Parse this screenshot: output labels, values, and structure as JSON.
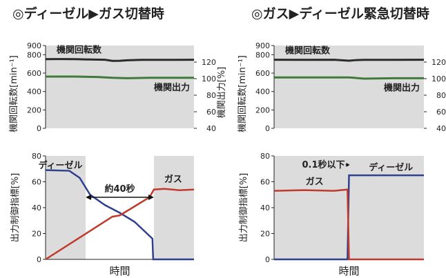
{
  "panels": [
    {
      "heading": "◎ディーゼル▶ガス切替時",
      "chart_data": [
        {
          "type": "line",
          "ylabel_left": "機関回転数[min⁻¹]",
          "ylabel_right": "機関出力[%]",
          "ylim_left": [
            0,
            900
          ],
          "yticks_left": [
            "0",
            "200",
            "400",
            "600",
            "800",
            "900"
          ],
          "ylim_right": [
            40,
            140
          ],
          "yticks_right": [
            "40",
            "60",
            "80",
            "100",
            "120"
          ],
          "grid": false,
          "series": [
            {
              "name": "機関回転数",
              "axis": "left",
              "color": "#2a2a2a",
              "x": [
                0,
                0.1,
                0.2,
                0.3,
                0.4,
                0.45,
                0.5,
                0.55,
                0.65,
                0.8,
                1.0
              ],
              "y": [
                752,
                753,
                752,
                748,
                745,
                733,
                734,
                740,
                744,
                744,
                745
              ]
            },
            {
              "name": "機関出力",
              "axis": "right",
              "color": "#3f7a3a",
              "x": [
                0,
                0.2,
                0.35,
                0.45,
                0.55,
                0.7,
                0.85,
                1.0
              ],
              "y": [
                102.5,
                102.5,
                102,
                101,
                100.5,
                101,
                101,
                101
              ]
            }
          ]
        },
        {
          "type": "line",
          "ylabel": "出力制御指標[%]",
          "xlabel": "時間",
          "ylim": [
            0,
            80
          ],
          "yticks": [
            "0",
            "20",
            "40",
            "60",
            "80"
          ],
          "grid": false,
          "shaded_ranges": [
            [
              0,
              0.27
            ],
            [
              0.73,
              1.0
            ]
          ],
          "annotation": {
            "text": "約40秒",
            "from_x": 0.27,
            "to_x": 0.73,
            "y": 48
          },
          "series": [
            {
              "name": "ディーゼル",
              "color": "#2e3f8f",
              "x": [
                0,
                0.16,
                0.23,
                0.3,
                0.4,
                0.5,
                0.6,
                0.72,
                0.725,
                1.0
              ],
              "y": [
                69,
                68.5,
                63,
                50,
                42,
                36,
                29,
                16,
                0,
                0
              ]
            },
            {
              "name": "ガス",
              "color": "#c0392b",
              "x": [
                0,
                0.45,
                0.5,
                0.6,
                0.7,
                0.73,
                0.8,
                0.9,
                1.0
              ],
              "y": [
                0,
                33,
                34,
                41,
                48,
                54,
                54.5,
                53.5,
                54
              ]
            }
          ]
        }
      ]
    },
    {
      "heading": "◎ガス▶ディーゼル緊急切替時",
      "chart_data": [
        {
          "type": "line",
          "ylabel_left": "機関回転数[min⁻¹]",
          "ylabel_right": "機関出力[%]",
          "ylim_left": [
            0,
            900
          ],
          "yticks_left": [
            "0",
            "200",
            "400",
            "600",
            "800",
            "900"
          ],
          "ylim_right": [
            40,
            140
          ],
          "yticks_right": [
            "40",
            "60",
            "80",
            "100",
            "120"
          ],
          "grid": false,
          "series": [
            {
              "name": "機関回転数",
              "axis": "left",
              "color": "#2a2a2a",
              "x": [
                0,
                0.2,
                0.4,
                0.5,
                0.55,
                0.6,
                0.8,
                1.0
              ],
              "y": [
                745,
                744,
                745,
                735,
                742,
                744,
                744,
                745
              ]
            },
            {
              "name": "機関出力",
              "axis": "right",
              "color": "#3f7a3a",
              "x": [
                0,
                0.3,
                0.5,
                0.6,
                0.8,
                1.0
              ],
              "y": [
                101.5,
                101.5,
                101.5,
                100,
                100.5,
                100.5
              ]
            }
          ]
        },
        {
          "type": "line",
          "ylabel": "出力制御指標[%]",
          "xlabel": "時間",
          "ylim": [
            0,
            80
          ],
          "yticks": [
            "0",
            "20",
            "40",
            "60",
            "80"
          ],
          "grid": false,
          "shaded_ranges": [
            [
              0,
              1.0
            ]
          ],
          "annotation": {
            "text": "0.1秒以下",
            "x": 0.5
          },
          "series": [
            {
              "name": "ディーゼル",
              "color": "#2e3f8f",
              "x": [
                0,
                0.49,
                0.5,
                0.51,
                1.0
              ],
              "y": [
                0,
                0,
                65,
                65,
                65
              ]
            },
            {
              "name": "ガス",
              "color": "#c0392b",
              "x": [
                0,
                0.2,
                0.4,
                0.49,
                0.5,
                1.0
              ],
              "y": [
                53,
                53.5,
                53,
                54,
                0,
                0
              ]
            }
          ]
        }
      ]
    }
  ]
}
